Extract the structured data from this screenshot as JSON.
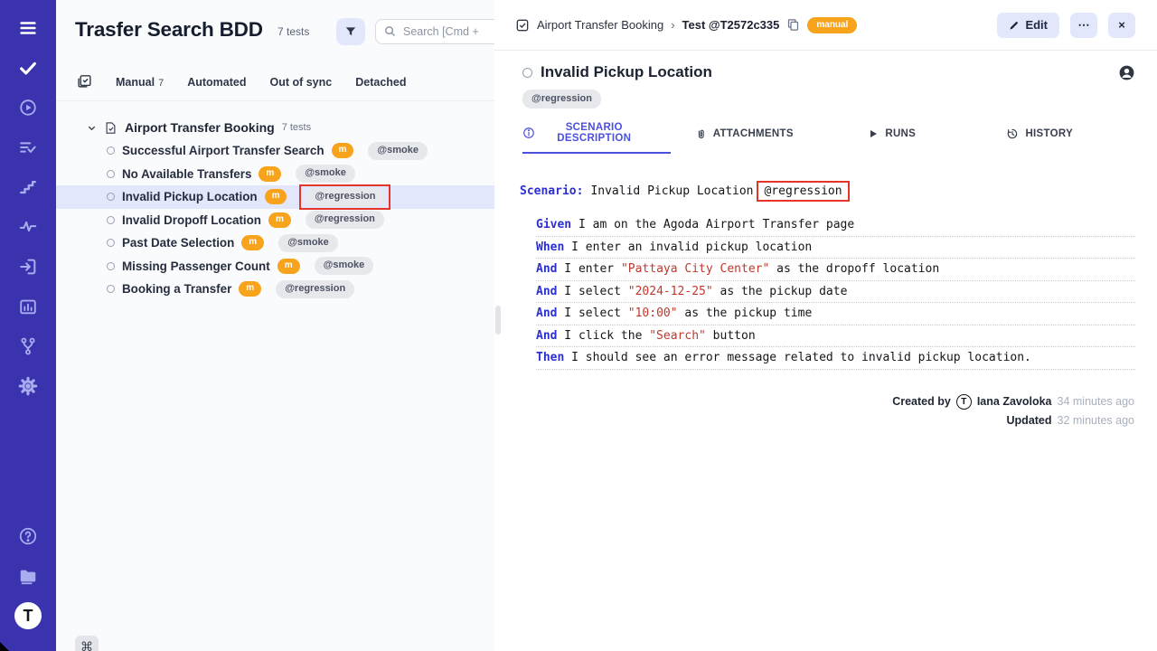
{
  "colors": {
    "sidebar": "#3b33ae",
    "accent": "#4b50dd",
    "badge_orange": "#f7a31b",
    "keyword_blue": "#2b2fd0",
    "string_red": "#c0382d",
    "annotation_red": "#e53529",
    "selected_row": "#e2e7fb"
  },
  "sidebar": {
    "main_icons": [
      {
        "icon": "menu-icon",
        "bright": true
      },
      {
        "icon": "check-icon",
        "bright": true
      },
      {
        "icon": "play-circle-icon"
      },
      {
        "icon": "list-check-icon"
      },
      {
        "icon": "steps-icon"
      },
      {
        "icon": "pulse-icon"
      },
      {
        "icon": "import-icon"
      },
      {
        "icon": "report-icon"
      },
      {
        "icon": "branch-icon"
      },
      {
        "icon": "gear-icon"
      }
    ],
    "bottom_icons": [
      {
        "icon": "help-icon"
      },
      {
        "icon": "folder-icon"
      }
    ],
    "logo_letter": "T"
  },
  "left_panel": {
    "title": "Trasfer Search BDD",
    "tests_count": "7 tests",
    "filter_icon": "funnel-icon",
    "search": {
      "placeholder": "Search [Cmd +",
      "clear_label": "×"
    },
    "tabs": [
      {
        "label": "Manual",
        "count": "7"
      },
      {
        "label": "Automated"
      },
      {
        "label": "Out of sync"
      },
      {
        "label": "Detached"
      }
    ],
    "tree": {
      "suite": {
        "name": "Airport Transfer Booking",
        "count": "7 tests"
      },
      "tests": [
        {
          "name": "Successful Airport Transfer Search",
          "badge": "m",
          "tag": "@smoke"
        },
        {
          "name": "No Available Transfers",
          "badge": "m",
          "tag": "@smoke"
        },
        {
          "name": "Invalid Pickup Location",
          "badge": "m",
          "tag": "@regression",
          "selected": true,
          "annotated": true
        },
        {
          "name": "Invalid Dropoff Location",
          "badge": "m",
          "tag": "@regression"
        },
        {
          "name": "Past Date Selection",
          "badge": "m",
          "tag": "@smoke"
        },
        {
          "name": "Missing Passenger Count",
          "badge": "m",
          "tag": "@smoke"
        },
        {
          "name": "Booking a Transfer",
          "badge": "m",
          "tag": "@regression"
        }
      ]
    },
    "shortcut_key": "⌘"
  },
  "right_panel": {
    "breadcrumb": {
      "suite": "Airport Transfer Booking",
      "separator": "›",
      "test": "Test @T2572c335",
      "badge": "manual"
    },
    "actions": {
      "edit": "Edit",
      "more": "⋯",
      "close": "×"
    },
    "title": "Invalid Pickup Location",
    "tag": "@regression",
    "tabs": [
      {
        "label": "SCENARIO DESCRIPTION",
        "icon": "info-icon",
        "active": true
      },
      {
        "label": "ATTACHMENTS",
        "icon": "paperclip-icon"
      },
      {
        "label": "RUNS",
        "icon": "play-icon"
      },
      {
        "label": "HISTORY",
        "icon": "history-icon"
      }
    ],
    "scenario": {
      "keyword": "Scenario:",
      "name": "Invalid Pickup Location",
      "tag": "@regression",
      "steps": [
        {
          "keyword": "Given",
          "parts": [
            {
              "t": "text",
              "v": " I am on the Agoda Airport Transfer page"
            }
          ]
        },
        {
          "keyword": "When",
          "parts": [
            {
              "t": "text",
              "v": " I enter an invalid pickup location"
            }
          ]
        },
        {
          "keyword": "And",
          "parts": [
            {
              "t": "text",
              "v": " I enter "
            },
            {
              "t": "str",
              "v": "\"Pattaya City Center\""
            },
            {
              "t": "text",
              "v": " as the dropoff location"
            }
          ]
        },
        {
          "keyword": "And",
          "parts": [
            {
              "t": "text",
              "v": " I select "
            },
            {
              "t": "str",
              "v": "\"2024-12-25\""
            },
            {
              "t": "text",
              "v": " as the pickup date"
            }
          ]
        },
        {
          "keyword": "And",
          "parts": [
            {
              "t": "text",
              "v": " I select "
            },
            {
              "t": "str",
              "v": "\"10:00\""
            },
            {
              "t": "text",
              "v": " as the pickup time"
            }
          ]
        },
        {
          "keyword": "And",
          "parts": [
            {
              "t": "text",
              "v": " I click the "
            },
            {
              "t": "str",
              "v": "\"Search\""
            },
            {
              "t": "text",
              "v": " button"
            }
          ]
        },
        {
          "keyword": "Then",
          "parts": [
            {
              "t": "text",
              "v": " I should see an error message related to invalid pickup location."
            }
          ]
        }
      ]
    },
    "meta": {
      "created_label": "Created by",
      "author": "Iana Zavoloka",
      "author_initial": "T",
      "created_ago": "34 minutes ago",
      "updated_label": "Updated",
      "updated_ago": "32 minutes ago"
    }
  }
}
